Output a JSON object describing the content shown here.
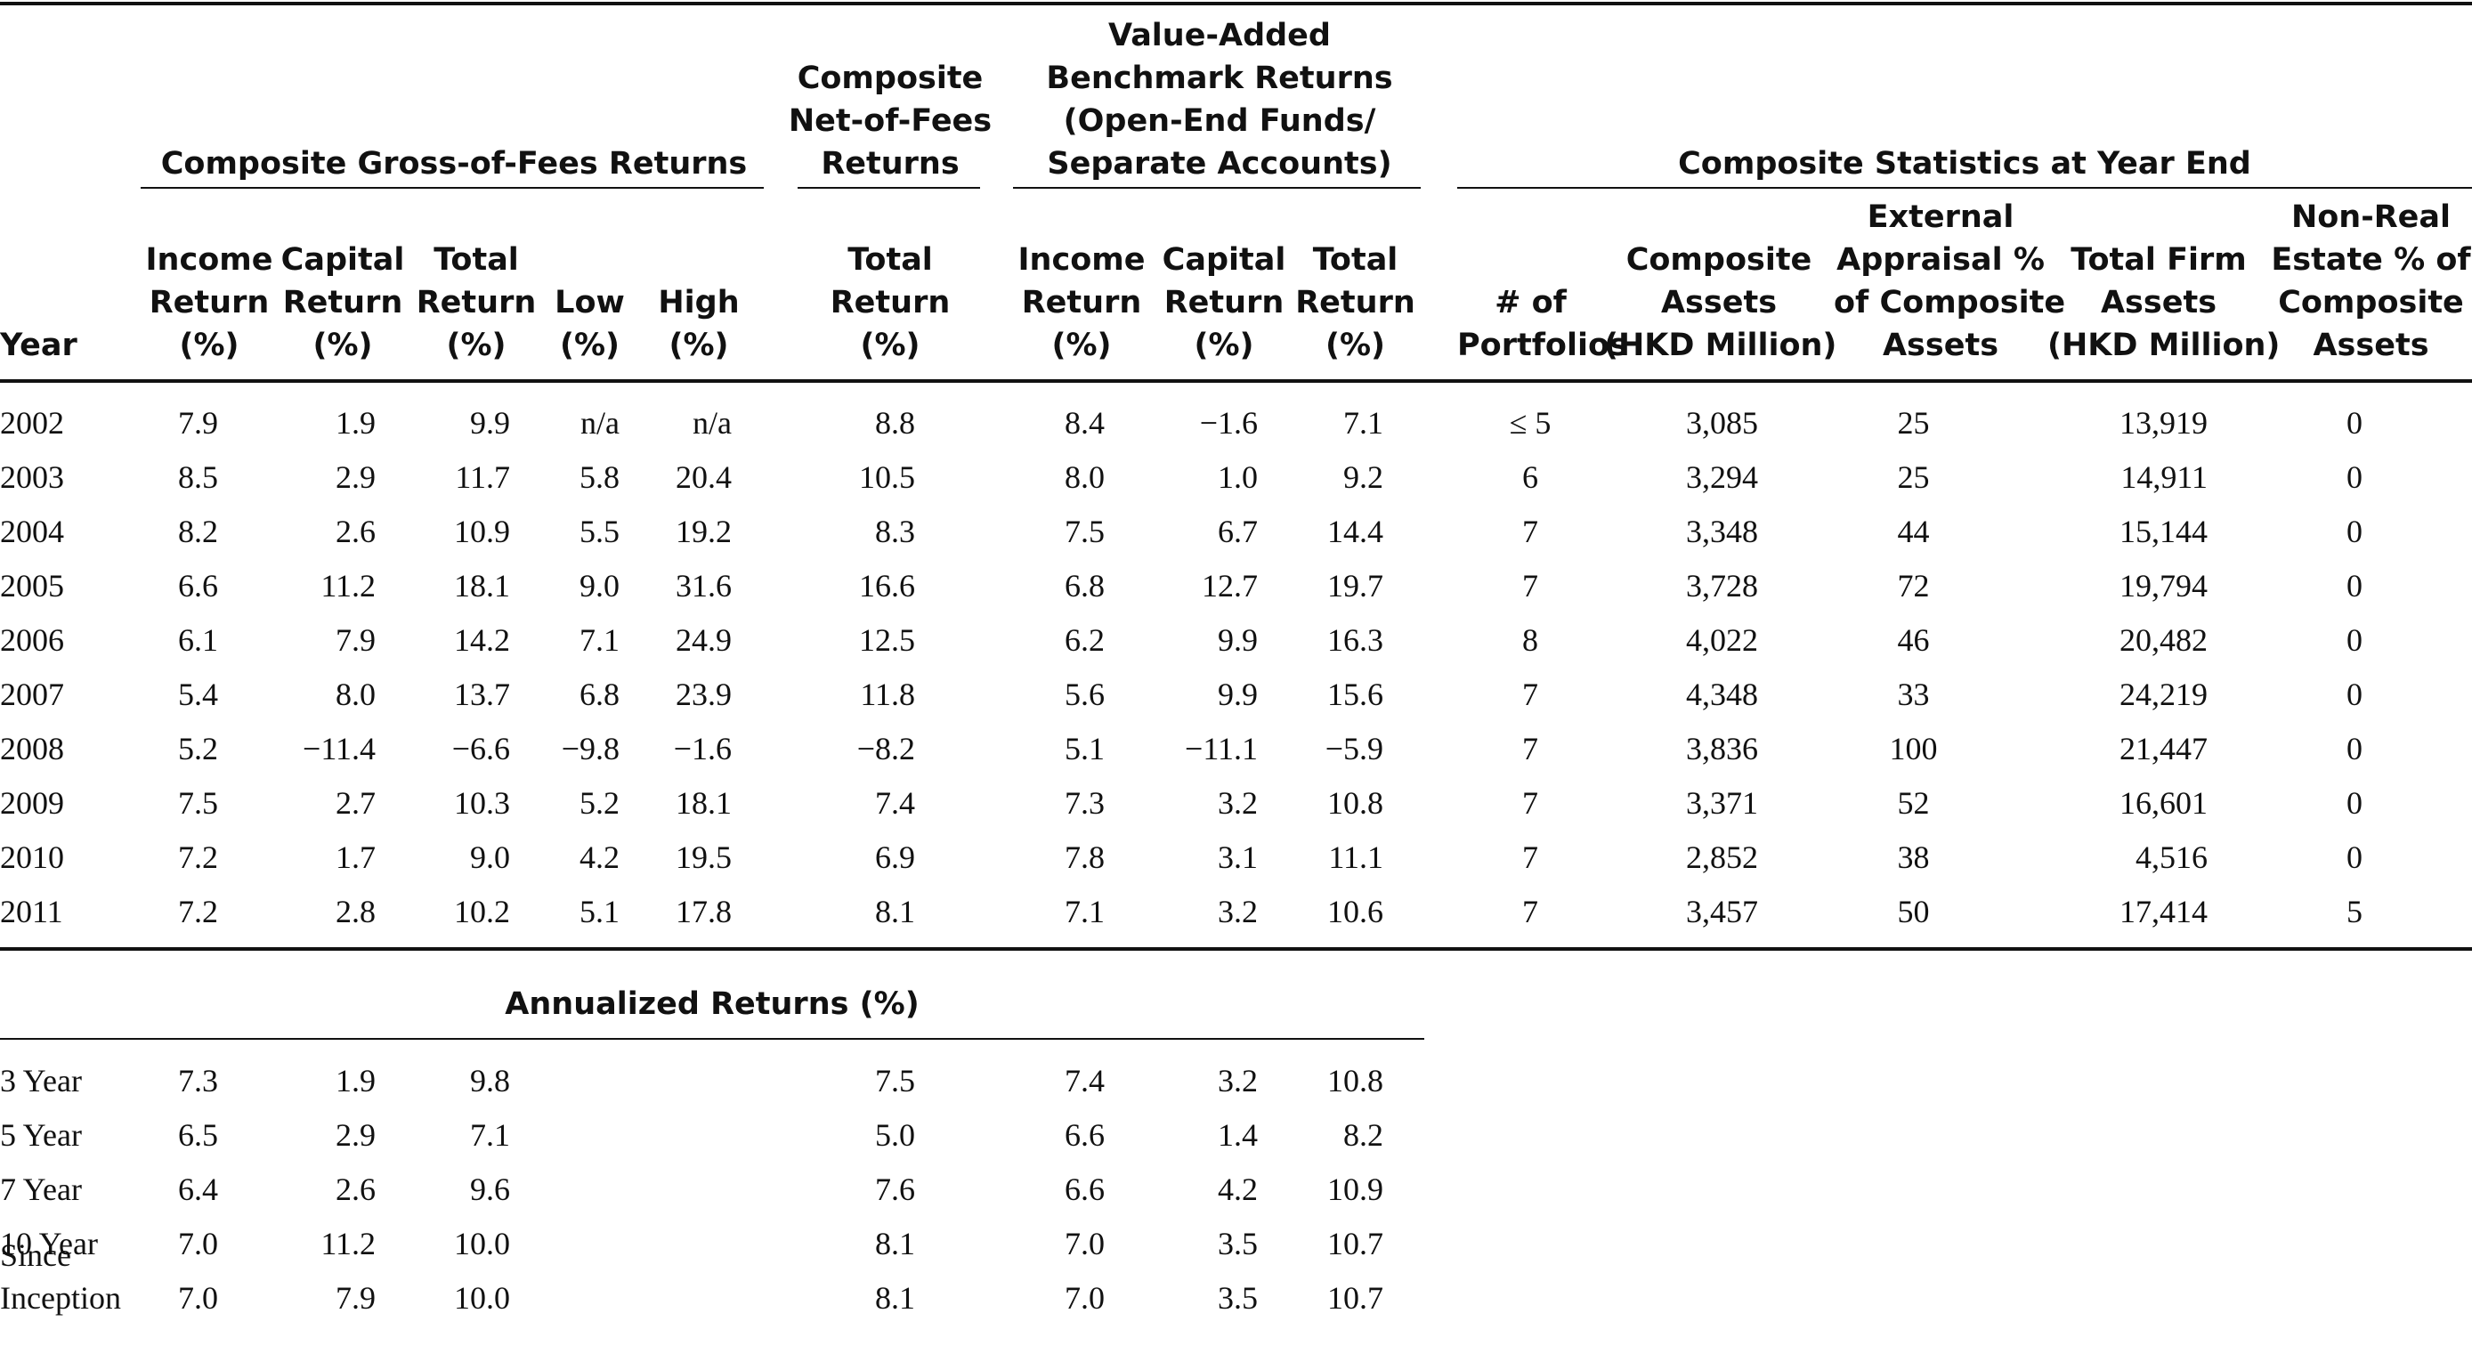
{
  "group_headers": {
    "gross": "Composite Gross-of-Fees Returns",
    "net": [
      "Composite",
      "Net-of-Fees",
      "Returns"
    ],
    "benchmark": [
      "Value-Added",
      "Benchmark Returns",
      "(Open-End Funds/",
      "Separate Accounts)"
    ],
    "stats": "Composite Statistics at Year End"
  },
  "column_headers": [
    [
      "Year"
    ],
    [
      "Income",
      "Return",
      "(%)"
    ],
    [
      "Capital",
      "Return",
      "(%)"
    ],
    [
      "Total",
      "Return",
      "(%)"
    ],
    [
      "Low",
      "(%)"
    ],
    [
      "High",
      "(%)"
    ],
    [
      "Total",
      "Return",
      "(%)"
    ],
    [
      "Income",
      "Return",
      "(%)"
    ],
    [
      "Capital",
      "Return",
      "(%)"
    ],
    [
      "Total",
      "Return",
      "(%)"
    ],
    [
      "# of",
      "Portfolios"
    ],
    [
      "Composite",
      "Assets",
      "(HKD Million)"
    ],
    [
      "External",
      "Appraisal %",
      "of Composite",
      "Assets"
    ],
    [
      "Total Firm",
      "Assets",
      "(HKD Million)"
    ],
    [
      "Non-Real",
      "Estate % of",
      "Composite",
      "Assets"
    ]
  ],
  "rows": [
    [
      "2002",
      "7.9",
      "1.9",
      "9.9",
      "n/a",
      "n/a",
      "8.8",
      "8.4",
      "−1.6",
      "7.1",
      "≤ 5",
      "3,085",
      "25",
      "13,919",
      "0"
    ],
    [
      "2003",
      "8.5",
      "2.9",
      "11.7",
      "5.8",
      "20.4",
      "10.5",
      "8.0",
      "1.0",
      "9.2",
      "6",
      "3,294",
      "25",
      "14,911",
      "0"
    ],
    [
      "2004",
      "8.2",
      "2.6",
      "10.9",
      "5.5",
      "19.2",
      "8.3",
      "7.5",
      "6.7",
      "14.4",
      "7",
      "3,348",
      "44",
      "15,144",
      "0"
    ],
    [
      "2005",
      "6.6",
      "11.2",
      "18.1",
      "9.0",
      "31.6",
      "16.6",
      "6.8",
      "12.7",
      "19.7",
      "7",
      "3,728",
      "72",
      "19,794",
      "0"
    ],
    [
      "2006",
      "6.1",
      "7.9",
      "14.2",
      "7.1",
      "24.9",
      "12.5",
      "6.2",
      "9.9",
      "16.3",
      "8",
      "4,022",
      "46",
      "20,482",
      "0"
    ],
    [
      "2007",
      "5.4",
      "8.0",
      "13.7",
      "6.8",
      "23.9",
      "11.8",
      "5.6",
      "9.9",
      "15.6",
      "7",
      "4,348",
      "33",
      "24,219",
      "0"
    ],
    [
      "2008",
      "5.2",
      "−11.4",
      "−6.6",
      "−9.8",
      "−1.6",
      "−8.2",
      "5.1",
      "−11.1",
      "−5.9",
      "7",
      "3,836",
      "100",
      "21,447",
      "0"
    ],
    [
      "2009",
      "7.5",
      "2.7",
      "10.3",
      "5.2",
      "18.1",
      "7.4",
      "7.3",
      "3.2",
      "10.8",
      "7",
      "3,371",
      "52",
      "16,601",
      "0"
    ],
    [
      "2010",
      "7.2",
      "1.7",
      "9.0",
      "4.2",
      "19.5",
      "6.9",
      "7.8",
      "3.1",
      "11.1",
      "7",
      "2,852",
      "38",
      "4,516",
      "0"
    ],
    [
      "2011",
      "7.2",
      "2.8",
      "10.2",
      "5.1",
      "17.8",
      "8.1",
      "7.1",
      "3.2",
      "10.6",
      "7",
      "3,457",
      "50",
      "17,414",
      "5"
    ]
  ],
  "annualized": {
    "title": "Annualized Returns (%)",
    "rows": [
      {
        "label": [
          "3 Year"
        ],
        "values": [
          "7.3",
          "1.9",
          "9.8",
          "7.5",
          "7.4",
          "3.2",
          "10.8"
        ]
      },
      {
        "label": [
          "5 Year"
        ],
        "values": [
          "6.5",
          "2.9",
          "7.1",
          "5.0",
          "6.6",
          "1.4",
          "8.2"
        ]
      },
      {
        "label": [
          "7 Year"
        ],
        "values": [
          "6.4",
          "2.6",
          "9.6",
          "7.6",
          "6.6",
          "4.2",
          "10.9"
        ]
      },
      {
        "label": [
          "10 Year"
        ],
        "values": [
          "7.0",
          "11.2",
          "10.0",
          "8.1",
          "7.0",
          "3.5",
          "10.7"
        ]
      },
      {
        "label": [
          "Since",
          "Inception"
        ],
        "values": [
          "7.0",
          "7.9",
          "10.0",
          "8.1",
          "7.0",
          "3.5",
          "10.7"
        ]
      }
    ]
  }
}
